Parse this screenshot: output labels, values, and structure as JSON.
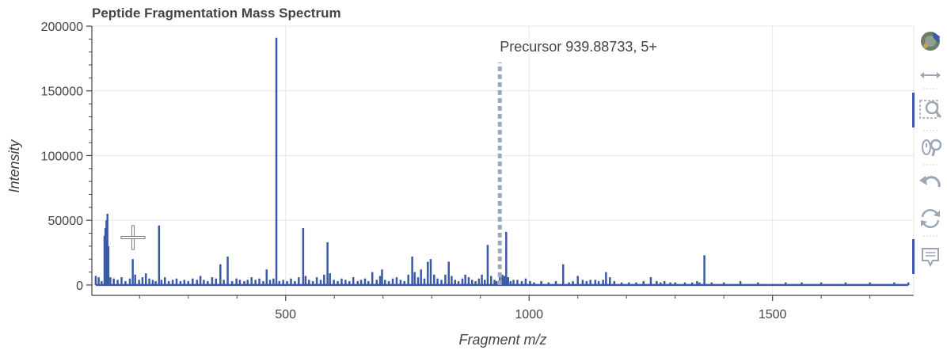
{
  "chart_data": {
    "type": "bar",
    "title": "Peptide Fragmentation Mass Spectrum",
    "xlabel": "Fragment m/z",
    "ylabel": "Intensity",
    "xlim": [
      102,
      1790
    ],
    "ylim": [
      -8000,
      200000
    ],
    "xticks": [
      500,
      1000,
      1500
    ],
    "xtick_labels": [
      "500",
      "1000",
      "1500"
    ],
    "yticks": [
      0,
      50000,
      100000,
      150000,
      200000
    ],
    "ytick_labels": [
      "0",
      "50000",
      "100000",
      "150000",
      "200000"
    ],
    "grid": true,
    "series_color": "#3a5aa8",
    "peaks": [
      [
        110,
        7000
      ],
      [
        116,
        6000
      ],
      [
        122,
        3000
      ],
      [
        128,
        38000
      ],
      [
        130,
        44000
      ],
      [
        132,
        50000
      ],
      [
        134,
        55000
      ],
      [
        136,
        30000
      ],
      [
        140,
        6000
      ],
      [
        147,
        5000
      ],
      [
        155,
        4000
      ],
      [
        163,
        6000
      ],
      [
        171,
        3000
      ],
      [
        180,
        5000
      ],
      [
        186,
        20000
      ],
      [
        191,
        8000
      ],
      [
        199,
        4000
      ],
      [
        206,
        6000
      ],
      [
        213,
        9000
      ],
      [
        220,
        5000
      ],
      [
        227,
        4000
      ],
      [
        233,
        3000
      ],
      [
        240,
        46000
      ],
      [
        245,
        4000
      ],
      [
        252,
        6000
      ],
      [
        260,
        3000
      ],
      [
        268,
        4000
      ],
      [
        276,
        5000
      ],
      [
        284,
        3000
      ],
      [
        292,
        4000
      ],
      [
        300,
        3000
      ],
      [
        309,
        5000
      ],
      [
        318,
        4000
      ],
      [
        325,
        7000
      ],
      [
        332,
        4000
      ],
      [
        340,
        3000
      ],
      [
        349,
        6000
      ],
      [
        357,
        5000
      ],
      [
        366,
        16000
      ],
      [
        373,
        4000
      ],
      [
        381,
        22000
      ],
      [
        390,
        3000
      ],
      [
        399,
        5000
      ],
      [
        406,
        4000
      ],
      [
        415,
        3000
      ],
      [
        422,
        4000
      ],
      [
        430,
        6000
      ],
      [
        438,
        4000
      ],
      [
        446,
        5000
      ],
      [
        454,
        3000
      ],
      [
        461,
        12000
      ],
      [
        468,
        4000
      ],
      [
        475,
        5000
      ],
      [
        481,
        191000
      ],
      [
        487,
        3000
      ],
      [
        495,
        4000
      ],
      [
        503,
        3000
      ],
      [
        511,
        5000
      ],
      [
        519,
        3000
      ],
      [
        527,
        6000
      ],
      [
        536,
        44000
      ],
      [
        541,
        7000
      ],
      [
        548,
        4000
      ],
      [
        556,
        3000
      ],
      [
        564,
        6000
      ],
      [
        572,
        4000
      ],
      [
        579,
        8000
      ],
      [
        586,
        33000
      ],
      [
        591,
        9000
      ],
      [
        599,
        4000
      ],
      [
        607,
        3000
      ],
      [
        615,
        5000
      ],
      [
        623,
        4000
      ],
      [
        631,
        3000
      ],
      [
        639,
        6000
      ],
      [
        648,
        3000
      ],
      [
        655,
        4000
      ],
      [
        663,
        5000
      ],
      [
        670,
        3000
      ],
      [
        678,
        10000
      ],
      [
        687,
        4000
      ],
      [
        694,
        7000
      ],
      [
        698,
        12000
      ],
      [
        704,
        4000
      ],
      [
        712,
        3000
      ],
      [
        720,
        5000
      ],
      [
        728,
        6000
      ],
      [
        736,
        4000
      ],
      [
        744,
        3000
      ],
      [
        752,
        8000
      ],
      [
        760,
        22000
      ],
      [
        765,
        10000
      ],
      [
        772,
        6000
      ],
      [
        778,
        12000
      ],
      [
        785,
        5000
      ],
      [
        792,
        18000
      ],
      [
        798,
        20000
      ],
      [
        805,
        8000
      ],
      [
        812,
        5000
      ],
      [
        820,
        4000
      ],
      [
        828,
        8000
      ],
      [
        835,
        18000
      ],
      [
        841,
        7000
      ],
      [
        848,
        4000
      ],
      [
        855,
        3000
      ],
      [
        863,
        5000
      ],
      [
        869,
        8000
      ],
      [
        876,
        6000
      ],
      [
        883,
        4000
      ],
      [
        890,
        3000
      ],
      [
        897,
        5000
      ],
      [
        903,
        8000
      ],
      [
        909,
        4000
      ],
      [
        915,
        31000
      ],
      [
        922,
        7000
      ],
      [
        929,
        4000
      ],
      [
        933,
        3000
      ],
      [
        940,
        6000
      ],
      [
        945,
        8000
      ],
      [
        949,
        7000
      ],
      [
        953,
        41000
      ],
      [
        957,
        6000
      ],
      [
        962,
        3000
      ],
      [
        968,
        4000
      ],
      [
        976,
        4000
      ],
      [
        985,
        3000
      ],
      [
        993,
        5000
      ],
      [
        1002,
        3000
      ],
      [
        1010,
        2000
      ],
      [
        1025,
        3000
      ],
      [
        1040,
        2000
      ],
      [
        1055,
        3000
      ],
      [
        1070,
        16000
      ],
      [
        1082,
        2000
      ],
      [
        1090,
        3000
      ],
      [
        1100,
        7000
      ],
      [
        1110,
        4000
      ],
      [
        1118,
        3000
      ],
      [
        1126,
        4000
      ],
      [
        1136,
        4000
      ],
      [
        1143,
        3000
      ],
      [
        1152,
        4000
      ],
      [
        1158,
        10000
      ],
      [
        1166,
        6000
      ],
      [
        1175,
        3000
      ],
      [
        1190,
        2000
      ],
      [
        1205,
        2000
      ],
      [
        1220,
        2000
      ],
      [
        1235,
        3000
      ],
      [
        1250,
        6000
      ],
      [
        1262,
        3000
      ],
      [
        1270,
        2000
      ],
      [
        1278,
        3000
      ],
      [
        1290,
        2000
      ],
      [
        1300,
        2000
      ],
      [
        1320,
        2000
      ],
      [
        1335,
        2000
      ],
      [
        1345,
        3000
      ],
      [
        1350,
        2000
      ],
      [
        1360,
        23000
      ],
      [
        1375,
        2000
      ],
      [
        1400,
        2000
      ],
      [
        1434,
        3000
      ],
      [
        1470,
        2000
      ],
      [
        1527,
        2000
      ],
      [
        1560,
        2000
      ],
      [
        1600,
        2000
      ],
      [
        1650,
        2000
      ],
      [
        1700,
        2000
      ],
      [
        1750,
        2000
      ],
      [
        1779,
        2000
      ]
    ],
    "precursor": {
      "mz": 939.88733,
      "label": "Precursor 939.88733, 5+",
      "height": 172000,
      "color": "#9aaabb"
    }
  },
  "toolbar": {
    "tools": [
      "bokeh-logo-icon",
      "pan-icon",
      "box-zoom-icon",
      "wheel-zoom-icon",
      "undo-icon",
      "reset-icon",
      "hover-icon"
    ],
    "active_color": "#3a5aa8",
    "icon_color": "#9aa5b5"
  }
}
